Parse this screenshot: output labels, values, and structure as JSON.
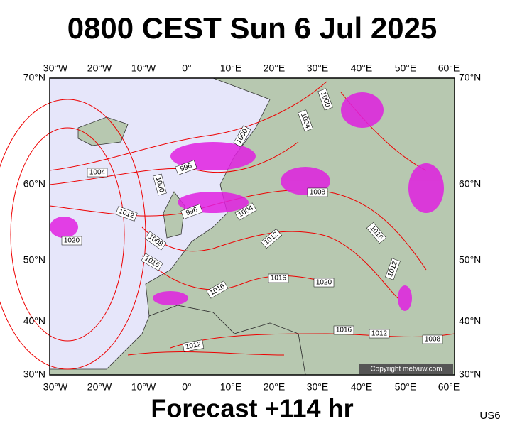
{
  "header": {
    "title": "0800 CEST Sun 6 Jul 2025"
  },
  "map": {
    "longitude_labels": [
      "30°W",
      "20°W",
      "10°W",
      "0°",
      "10°E",
      "20°E",
      "30°E",
      "40°E",
      "50°E",
      "60°E"
    ],
    "latitude_labels": [
      "70°N",
      "60°N",
      "50°N",
      "40°N",
      "30°N"
    ],
    "isobar_labels": [
      1004,
      1000,
      996,
      996,
      1012,
      1020,
      1008,
      1016,
      1004,
      1000,
      1004,
      1000,
      1008,
      1012,
      1016,
      1012,
      1016,
      1020,
      1016,
      1016,
      1012,
      1008,
      1012
    ],
    "copyright": "Copyright metvuw.com"
  },
  "footer": {
    "forecast": "Forecast +114 hr",
    "code": "US6"
  }
}
